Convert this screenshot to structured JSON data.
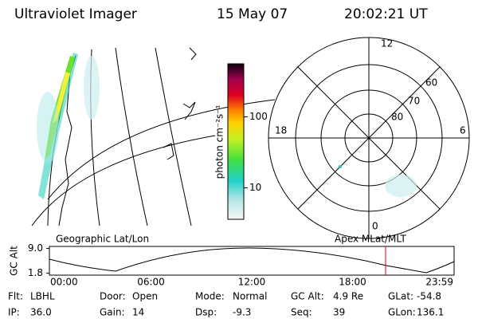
{
  "header": {
    "title": "Ultraviolet Imager",
    "date": "15 May 07",
    "time": "20:02:21 UT"
  },
  "colorbar": {
    "label": "photon cm⁻²s⁻¹",
    "lim": [
      3.6,
      560
    ],
    "log": true,
    "ticks": [
      10,
      100
    ]
  },
  "polar": {
    "mlt_labels": [
      "12",
      "18",
      "6",
      "0"
    ],
    "lat_labels": [
      "60",
      "70",
      "80"
    ]
  },
  "panels": {
    "left": "Geographic Lat/Lon",
    "right": "Apex MLat/MLT"
  },
  "timeline": {
    "ylabel": "GC Alt",
    "yticks": [
      {
        "value": 9,
        "label": "9.0"
      },
      {
        "value": 1.8,
        "label": "1.8"
      }
    ],
    "ylim": [
      1.2,
      9.6
    ],
    "xticks": [
      "00:00",
      "06:00",
      "12:00",
      "18:00",
      "23:59"
    ]
  },
  "info": [
    [
      {
        "label": "Flt:",
        "value": "LBHL"
      },
      {
        "label": "Door:",
        "value": "Open"
      },
      {
        "label": "Mode:",
        "value": "Normal"
      },
      {
        "label": "GC Alt:",
        "value": "4.9 Re"
      },
      {
        "label": "GLat:",
        "value": "-54.8"
      }
    ],
    [
      {
        "label": "IP:",
        "value": "36.0"
      },
      {
        "label": "Gain:",
        "value": "14"
      },
      {
        "label": "Dsp:",
        "value": "-9.3"
      },
      {
        "label": "Seq:",
        "value": "39"
      },
      {
        "label": "GLon:",
        "value": "136.1"
      }
    ]
  ]
}
